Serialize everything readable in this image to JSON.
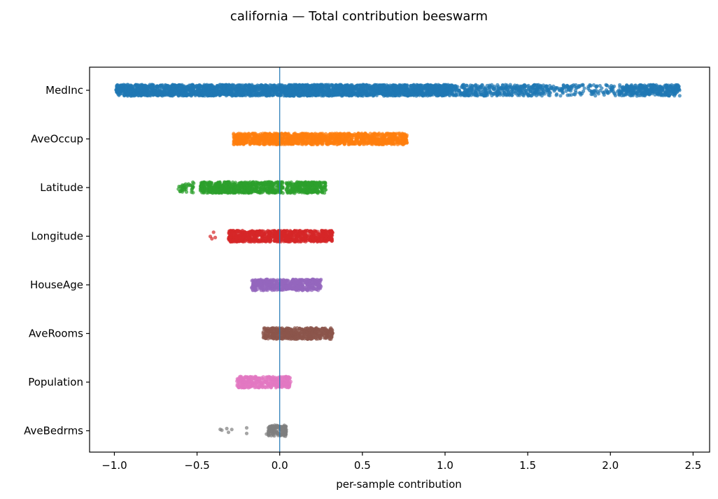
{
  "chart_data": {
    "type": "scatter",
    "title": "california — Total contribution beeswarm",
    "xlabel": "per-sample contribution",
    "ylabel": "",
    "xlim": [
      -1.15,
      2.6
    ],
    "xticks": [
      -1.0,
      -0.5,
      0.0,
      0.5,
      1.0,
      1.5,
      2.0,
      2.5
    ],
    "xtick_labels": [
      "−1.0",
      "−0.5",
      "0.0",
      "0.5",
      "1.0",
      "1.5",
      "2.0",
      "2.5"
    ],
    "grid": false,
    "zero_line": 0.0,
    "series": [
      {
        "name": "MedInc",
        "color": "#1f77b4",
        "segments": [
          [
            -0.99,
            1.05,
            2.0
          ],
          [
            1.05,
            1.6,
            0.9
          ],
          [
            1.6,
            2.05,
            0.45
          ],
          [
            2.05,
            2.42,
            1.3
          ]
        ],
        "outliers": []
      },
      {
        "name": "AveOccup",
        "color": "#ff7f0e",
        "segments": [
          [
            -0.28,
            0.77,
            1.8
          ]
        ],
        "outliers": []
      },
      {
        "name": "Latitude",
        "color": "#2ca02c",
        "segments": [
          [
            -0.48,
            0.02,
            1.8
          ],
          [
            0.04,
            0.28,
            1.6
          ],
          [
            -0.62,
            -0.52,
            0.5
          ]
        ],
        "outliers": [
          -0.59,
          -0.6,
          -0.57
        ]
      },
      {
        "name": "Longitude",
        "color": "#d62728",
        "segments": [
          [
            -0.31,
            0.32,
            1.9
          ]
        ],
        "outliers": [
          -0.4,
          -0.41,
          -0.39,
          -0.42
        ]
      },
      {
        "name": "HouseAge",
        "color": "#9467bd",
        "segments": [
          [
            -0.17,
            0.25,
            1.7
          ]
        ],
        "outliers": []
      },
      {
        "name": "AveRooms",
        "color": "#8c564b",
        "segments": [
          [
            -0.1,
            0.32,
            1.7
          ]
        ],
        "outliers": []
      },
      {
        "name": "Population",
        "color": "#e377c2",
        "segments": [
          [
            -0.26,
            0.07,
            1.6
          ]
        ],
        "outliers": []
      },
      {
        "name": "AveBedrms",
        "color": "#7f7f7f",
        "segments": [
          [
            -0.07,
            0.04,
            1.6
          ]
        ],
        "outliers": [
          -0.36,
          -0.35,
          -0.32,
          -0.31,
          -0.29,
          -0.2,
          -0.2,
          -0.08
        ]
      }
    ]
  }
}
